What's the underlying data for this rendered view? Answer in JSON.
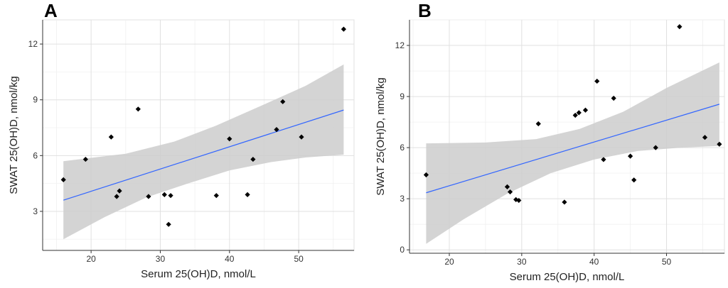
{
  "chart_data": [
    {
      "panel": "A",
      "type": "scatter",
      "xlabel": "Serum 25(OH)D, nmol/L",
      "ylabel": "SWAT 25(OH)D, nmol/kg",
      "xlim": [
        13,
        58
      ],
      "ylim": [
        0.9,
        13.3
      ],
      "xticks": [
        20,
        30,
        40,
        50
      ],
      "yticks": [
        3,
        6,
        9,
        12
      ],
      "grid": true,
      "points": [
        {
          "x": 16,
          "y": 4.7
        },
        {
          "x": 19.2,
          "y": 5.8
        },
        {
          "x": 22.9,
          "y": 7.0
        },
        {
          "x": 23.7,
          "y": 3.8
        },
        {
          "x": 24.1,
          "y": 4.1
        },
        {
          "x": 26.8,
          "y": 8.5
        },
        {
          "x": 28.3,
          "y": 3.8
        },
        {
          "x": 30.6,
          "y": 3.9
        },
        {
          "x": 31.2,
          "y": 2.3
        },
        {
          "x": 31.5,
          "y": 3.85
        },
        {
          "x": 38.1,
          "y": 3.85
        },
        {
          "x": 40.0,
          "y": 6.9
        },
        {
          "x": 42.6,
          "y": 3.9
        },
        {
          "x": 43.4,
          "y": 5.8
        },
        {
          "x": 46.8,
          "y": 7.4
        },
        {
          "x": 47.7,
          "y": 8.9
        },
        {
          "x": 50.4,
          "y": 7.0
        },
        {
          "x": 56.5,
          "y": 12.8
        }
      ],
      "fit": {
        "x": [
          16,
          56.5
        ],
        "y": [
          3.6,
          8.45
        ]
      },
      "ci_upper": [
        {
          "x": 16,
          "y": 5.7
        },
        {
          "x": 25,
          "y": 6.1
        },
        {
          "x": 32,
          "y": 6.75
        },
        {
          "x": 38,
          "y": 7.6
        },
        {
          "x": 45,
          "y": 8.75
        },
        {
          "x": 51,
          "y": 9.75
        },
        {
          "x": 56.5,
          "y": 10.9
        }
      ],
      "ci_lower": [
        {
          "x": 16,
          "y": 1.5
        },
        {
          "x": 22,
          "y": 2.7
        },
        {
          "x": 28,
          "y": 3.75
        },
        {
          "x": 34,
          "y": 4.5
        },
        {
          "x": 40,
          "y": 5.2
        },
        {
          "x": 46,
          "y": 5.65
        },
        {
          "x": 51,
          "y": 5.9
        },
        {
          "x": 56.5,
          "y": 6.05
        }
      ]
    },
    {
      "panel": "B",
      "type": "scatter",
      "xlabel": "Serum 25(OH)D, nmol/L",
      "ylabel": "SWAT 25(OH)D, nmol/kg",
      "xlim": [
        14.5,
        58
      ],
      "ylim": [
        -0.2,
        13.5
      ],
      "xticks": [
        20,
        30,
        40,
        50
      ],
      "yticks": [
        0,
        3,
        6,
        9,
        12
      ],
      "grid": true,
      "points": [
        {
          "x": 16.8,
          "y": 4.4
        },
        {
          "x": 28.0,
          "y": 3.7
        },
        {
          "x": 28.4,
          "y": 3.4
        },
        {
          "x": 29.2,
          "y": 2.95
        },
        {
          "x": 29.6,
          "y": 2.9
        },
        {
          "x": 32.3,
          "y": 7.4
        },
        {
          "x": 35.9,
          "y": 2.8
        },
        {
          "x": 37.4,
          "y": 7.9
        },
        {
          "x": 37.9,
          "y": 8.05
        },
        {
          "x": 38.8,
          "y": 8.2
        },
        {
          "x": 40.4,
          "y": 9.9
        },
        {
          "x": 41.3,
          "y": 5.3
        },
        {
          "x": 42.7,
          "y": 8.9
        },
        {
          "x": 45.0,
          "y": 5.5
        },
        {
          "x": 45.5,
          "y": 4.1
        },
        {
          "x": 48.5,
          "y": 6.0
        },
        {
          "x": 51.8,
          "y": 13.1
        },
        {
          "x": 55.3,
          "y": 6.6
        },
        {
          "x": 57.3,
          "y": 6.2
        }
      ],
      "fit": {
        "x": [
          16.8,
          57.3
        ],
        "y": [
          3.35,
          8.55
        ]
      },
      "ci_upper": [
        {
          "x": 16.8,
          "y": 6.25
        },
        {
          "x": 25,
          "y": 6.3
        },
        {
          "x": 32,
          "y": 6.5
        },
        {
          "x": 38,
          "y": 7.1
        },
        {
          "x": 44,
          "y": 8.1
        },
        {
          "x": 50,
          "y": 9.5
        },
        {
          "x": 57.3,
          "y": 11.0
        }
      ],
      "ci_lower": [
        {
          "x": 16.8,
          "y": 0.35
        },
        {
          "x": 22,
          "y": 1.8
        },
        {
          "x": 28,
          "y": 3.3
        },
        {
          "x": 34,
          "y": 4.5
        },
        {
          "x": 40,
          "y": 5.3
        },
        {
          "x": 46,
          "y": 5.8
        },
        {
          "x": 52,
          "y": 6.0
        },
        {
          "x": 57.3,
          "y": 6.1
        }
      ]
    }
  ],
  "colors": {
    "panel_bg": "#ffffff",
    "grid": "#e0e0e0",
    "ribbon": "#cccccc",
    "fit_line": "#3366ff",
    "point": "#000000",
    "axis": "#333333"
  }
}
